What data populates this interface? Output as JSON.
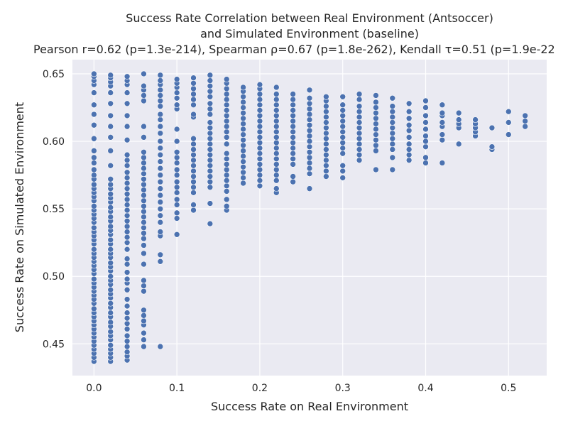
{
  "colors": {
    "plot_background": "#eaeaf2",
    "grid": "#ffffff",
    "point_fill": "#4c72b0",
    "point_edge": "#ffffff",
    "text": "#262626"
  },
  "chart_data": {
    "type": "scatter",
    "title_lines": [
      "Success Rate Correlation between Real Environment (Antsoccer)",
      "and Simulated Environment (baseline)",
      "Pearson r=0.62 (p=1.3e-214), Spearman ρ=0.67 (p=1.8e-262), Kendall τ=0.51 (p=1.9e-22"
    ],
    "xlabel": "Success Rate on Real Environment",
    "ylabel": "Success Rate on Simulated Environment",
    "xlim": [
      -0.026,
      0.546
    ],
    "ylim": [
      0.4265,
      0.6605
    ],
    "x_ticks": [
      0.0,
      0.1,
      0.2,
      0.3,
      0.4,
      0.5
    ],
    "x_tick_labels": [
      "0.0",
      "0.1",
      "0.2",
      "0.3",
      "0.4",
      "0.5"
    ],
    "y_ticks": [
      0.45,
      0.5,
      0.55,
      0.6,
      0.65
    ],
    "y_tick_labels": [
      "0.45",
      "0.50",
      "0.55",
      "0.60",
      "0.65"
    ],
    "grid": true,
    "columns": [
      {
        "x": 0.0,
        "y": [
          0.437,
          0.44,
          0.443,
          0.446,
          0.449,
          0.452,
          0.455,
          0.458,
          0.461,
          0.464,
          0.467,
          0.47,
          0.473,
          0.476,
          0.48,
          0.483,
          0.486,
          0.489,
          0.492,
          0.495,
          0.498,
          0.502,
          0.505,
          0.508,
          0.511,
          0.514,
          0.517,
          0.52,
          0.524,
          0.527,
          0.53,
          0.533,
          0.536,
          0.54,
          0.543,
          0.546,
          0.549,
          0.552,
          0.556,
          0.559,
          0.562,
          0.565,
          0.568,
          0.572,
          0.575,
          0.579,
          0.584,
          0.588,
          0.593,
          0.602,
          0.612,
          0.62,
          0.627,
          0.636,
          0.642,
          0.645,
          0.648,
          0.65
        ]
      },
      {
        "x": 0.02,
        "y": [
          0.437,
          0.44,
          0.443,
          0.446,
          0.449,
          0.453,
          0.456,
          0.459,
          0.463,
          0.466,
          0.47,
          0.473,
          0.477,
          0.48,
          0.484,
          0.487,
          0.49,
          0.494,
          0.497,
          0.5,
          0.504,
          0.507,
          0.51,
          0.514,
          0.517,
          0.52,
          0.524,
          0.527,
          0.531,
          0.534,
          0.537,
          0.541,
          0.544,
          0.548,
          0.551,
          0.555,
          0.558,
          0.561,
          0.565,
          0.568,
          0.572,
          0.582,
          0.593,
          0.603,
          0.611,
          0.619,
          0.628,
          0.636,
          0.641,
          0.644,
          0.647,
          0.649
        ]
      },
      {
        "x": 0.04,
        "y": [
          0.438,
          0.441,
          0.444,
          0.448,
          0.452,
          0.456,
          0.461,
          0.465,
          0.469,
          0.473,
          0.478,
          0.483,
          0.49,
          0.495,
          0.498,
          0.503,
          0.509,
          0.513,
          0.52,
          0.525,
          0.529,
          0.533,
          0.537,
          0.541,
          0.545,
          0.549,
          0.553,
          0.557,
          0.561,
          0.565,
          0.569,
          0.573,
          0.577,
          0.582,
          0.586,
          0.59,
          0.601,
          0.611,
          0.619,
          0.628,
          0.636,
          0.642,
          0.645,
          0.648
        ]
      },
      {
        "x": 0.06,
        "y": [
          0.448,
          0.453,
          0.458,
          0.464,
          0.467,
          0.471,
          0.475,
          0.489,
          0.493,
          0.497,
          0.509,
          0.517,
          0.523,
          0.528,
          0.532,
          0.536,
          0.54,
          0.544,
          0.548,
          0.552,
          0.556,
          0.56,
          0.564,
          0.568,
          0.572,
          0.576,
          0.58,
          0.584,
          0.588,
          0.592,
          0.603,
          0.611,
          0.63,
          0.634,
          0.638,
          0.641,
          0.65
        ]
      },
      {
        "x": 0.08,
        "y": [
          0.448,
          0.511,
          0.516,
          0.53,
          0.533,
          0.54,
          0.545,
          0.55,
          0.555,
          0.56,
          0.565,
          0.57,
          0.575,
          0.58,
          0.585,
          0.59,
          0.595,
          0.6,
          0.606,
          0.611,
          0.616,
          0.62,
          0.626,
          0.63,
          0.634,
          0.638,
          0.642,
          0.645,
          0.649
        ]
      },
      {
        "x": 0.1,
        "y": [
          0.531,
          0.543,
          0.547,
          0.553,
          0.557,
          0.562,
          0.566,
          0.57,
          0.575,
          0.579,
          0.584,
          0.588,
          0.592,
          0.6,
          0.609,
          0.624,
          0.627,
          0.632,
          0.636,
          0.64,
          0.643,
          0.646
        ]
      },
      {
        "x": 0.12,
        "y": [
          0.549,
          0.553,
          0.562,
          0.566,
          0.57,
          0.574,
          0.578,
          0.582,
          0.586,
          0.59,
          0.594,
          0.598,
          0.602,
          0.618,
          0.62,
          0.627,
          0.631,
          0.635,
          0.639,
          0.643,
          0.647
        ]
      },
      {
        "x": 0.14,
        "y": [
          0.539,
          0.554,
          0.566,
          0.57,
          0.574,
          0.578,
          0.582,
          0.586,
          0.59,
          0.594,
          0.598,
          0.602,
          0.606,
          0.61,
          0.614,
          0.62,
          0.624,
          0.628,
          0.633,
          0.637,
          0.641,
          0.645,
          0.649
        ]
      },
      {
        "x": 0.16,
        "y": [
          0.549,
          0.552,
          0.557,
          0.563,
          0.567,
          0.571,
          0.575,
          0.579,
          0.583,
          0.587,
          0.591,
          0.598,
          0.603,
          0.607,
          0.611,
          0.615,
          0.619,
          0.623,
          0.627,
          0.631,
          0.635,
          0.639,
          0.643,
          0.646
        ]
      },
      {
        "x": 0.18,
        "y": [
          0.569,
          0.573,
          0.577,
          0.581,
          0.585,
          0.589,
          0.593,
          0.597,
          0.601,
          0.605,
          0.609,
          0.613,
          0.617,
          0.621,
          0.625,
          0.629,
          0.633,
          0.637,
          0.64
        ]
      },
      {
        "x": 0.2,
        "y": [
          0.567,
          0.571,
          0.575,
          0.579,
          0.583,
          0.587,
          0.591,
          0.595,
          0.599,
          0.603,
          0.607,
          0.611,
          0.615,
          0.619,
          0.623,
          0.627,
          0.631,
          0.635,
          0.639,
          0.642
        ]
      },
      {
        "x": 0.22,
        "y": [
          0.562,
          0.565,
          0.571,
          0.575,
          0.579,
          0.583,
          0.587,
          0.591,
          0.595,
          0.599,
          0.603,
          0.607,
          0.611,
          0.615,
          0.619,
          0.623,
          0.627,
          0.631,
          0.635,
          0.64
        ]
      },
      {
        "x": 0.24,
        "y": [
          0.57,
          0.574,
          0.583,
          0.587,
          0.591,
          0.595,
          0.599,
          0.603,
          0.607,
          0.611,
          0.615,
          0.619,
          0.623,
          0.627,
          0.631,
          0.635
        ]
      },
      {
        "x": 0.26,
        "y": [
          0.565,
          0.576,
          0.58,
          0.584,
          0.588,
          0.592,
          0.596,
          0.6,
          0.604,
          0.608,
          0.612,
          0.616,
          0.62,
          0.624,
          0.628,
          0.632,
          0.638
        ]
      },
      {
        "x": 0.28,
        "y": [
          0.574,
          0.578,
          0.582,
          0.586,
          0.59,
          0.594,
          0.598,
          0.602,
          0.606,
          0.61,
          0.614,
          0.618,
          0.622,
          0.626,
          0.63,
          0.633
        ]
      },
      {
        "x": 0.3,
        "y": [
          0.573,
          0.578,
          0.582,
          0.591,
          0.595,
          0.599,
          0.603,
          0.607,
          0.611,
          0.615,
          0.619,
          0.623,
          0.627,
          0.633
        ]
      },
      {
        "x": 0.32,
        "y": [
          0.586,
          0.59,
          0.594,
          0.598,
          0.602,
          0.606,
          0.61,
          0.614,
          0.618,
          0.622,
          0.626,
          0.631,
          0.635
        ]
      },
      {
        "x": 0.34,
        "y": [
          0.579,
          0.593,
          0.597,
          0.601,
          0.605,
          0.609,
          0.613,
          0.617,
          0.621,
          0.625,
          0.629,
          0.634
        ]
      },
      {
        "x": 0.36,
        "y": [
          0.579,
          0.588,
          0.594,
          0.598,
          0.602,
          0.606,
          0.61,
          0.614,
          0.618,
          0.622,
          0.626,
          0.632
        ]
      },
      {
        "x": 0.38,
        "y": [
          0.586,
          0.59,
          0.594,
          0.598,
          0.603,
          0.608,
          0.612,
          0.617,
          0.622,
          0.628
        ]
      },
      {
        "x": 0.4,
        "y": [
          0.584,
          0.588,
          0.596,
          0.6,
          0.604,
          0.609,
          0.614,
          0.619,
          0.625,
          0.63
        ]
      },
      {
        "x": 0.42,
        "y": [
          0.584,
          0.601,
          0.605,
          0.611,
          0.614,
          0.619,
          0.621,
          0.627
        ]
      },
      {
        "x": 0.44,
        "y": [
          0.598,
          0.61,
          0.613,
          0.616,
          0.621
        ]
      },
      {
        "x": 0.46,
        "y": [
          0.604,
          0.607,
          0.61,
          0.613,
          0.616
        ]
      },
      {
        "x": 0.48,
        "y": [
          0.594,
          0.596,
          0.61
        ]
      },
      {
        "x": 0.5,
        "y": [
          0.605,
          0.614,
          0.622
        ]
      },
      {
        "x": 0.52,
        "y": [
          0.611,
          0.615,
          0.619
        ]
      }
    ]
  }
}
